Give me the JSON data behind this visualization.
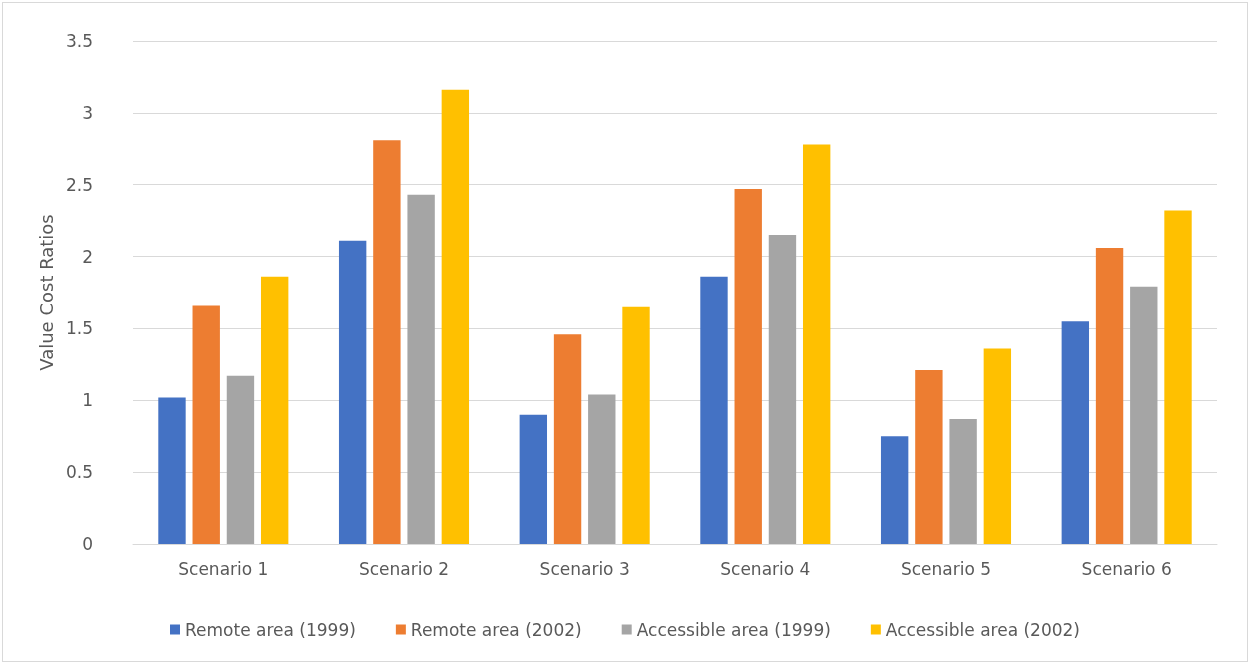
{
  "chart_data": {
    "type": "bar",
    "ylabel": "Value Cost Ratios",
    "categories": [
      "Scenario 1",
      "Scenario 2",
      "Scenario 3",
      "Scenario 4",
      "Scenario 5",
      "Scenario 6"
    ],
    "series": [
      {
        "name": "Remote area (1999)",
        "color": "#4472c4",
        "values": [
          1.02,
          2.11,
          0.9,
          1.86,
          0.75,
          1.55
        ]
      },
      {
        "name": "Remote area (2002)",
        "color": "#ed7d31",
        "values": [
          1.66,
          2.81,
          1.46,
          2.47,
          1.21,
          2.06
        ]
      },
      {
        "name": "Accessible area (1999)",
        "color": "#a5a5a5",
        "values": [
          1.17,
          2.43,
          1.04,
          2.15,
          0.87,
          1.79
        ]
      },
      {
        "name": "Accessible area (2002)",
        "color": "#ffc000",
        "values": [
          1.86,
          3.16,
          1.65,
          2.78,
          1.36,
          2.32
        ]
      }
    ],
    "ylim": [
      0,
      3.5
    ],
    "yticks": [
      0,
      0.5,
      1,
      1.5,
      2,
      2.5,
      3,
      3.5
    ],
    "grid": "y",
    "legend": "bottom"
  }
}
